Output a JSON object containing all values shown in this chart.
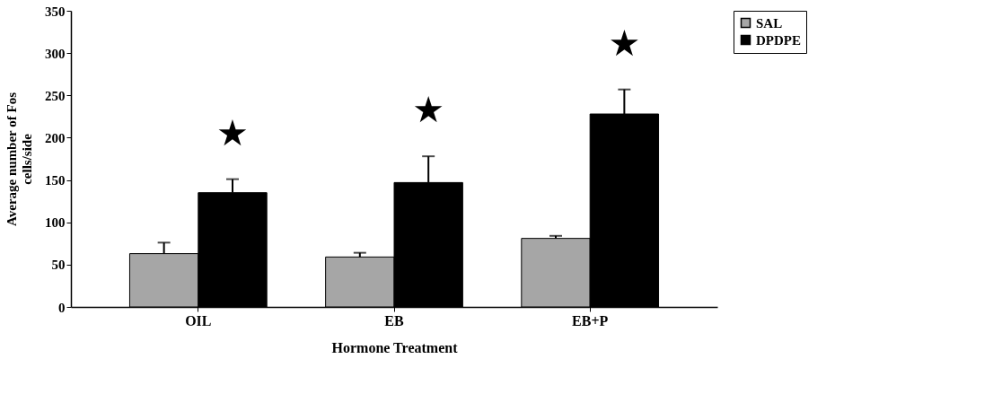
{
  "chart_data": {
    "type": "bar",
    "xlabel": "Hormone Treatment",
    "ylabel": "Average number of Fos\ncells/side",
    "categories": [
      "OIL",
      "EB",
      "EB+P"
    ],
    "series": [
      {
        "name": "SAL",
        "color": "#a6a6a6",
        "values": [
          63,
          59,
          81
        ],
        "errors": [
          13,
          5,
          3
        ]
      },
      {
        "name": "DPDPE",
        "color": "#000000",
        "values": [
          135,
          147,
          228
        ],
        "errors": [
          16,
          31,
          29
        ]
      }
    ],
    "ylim": [
      0,
      350
    ],
    "yticks": [
      0,
      50,
      100,
      150,
      200,
      250,
      300,
      350
    ],
    "grid": false,
    "legend": "right",
    "annotations": [
      "★",
      "★",
      "★"
    ]
  }
}
